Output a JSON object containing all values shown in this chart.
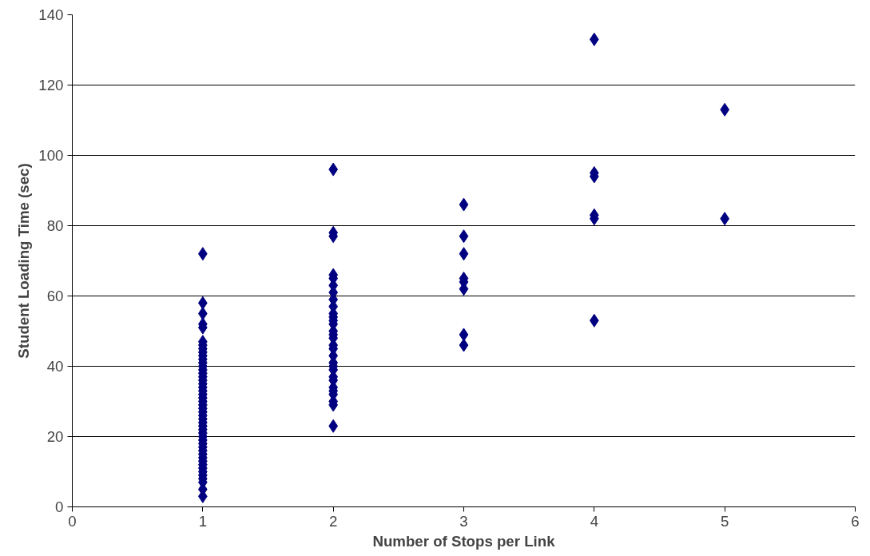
{
  "chart_data": {
    "type": "scatter",
    "xlabel": "Number of Stops per Link",
    "ylabel": "Student Loading Time (sec)",
    "xlim": [
      0,
      6
    ],
    "xticks": [
      0,
      1,
      2,
      3,
      4,
      5,
      6
    ],
    "ylim": [
      0,
      140
    ],
    "yticks": [
      0,
      20,
      40,
      60,
      80,
      100,
      120,
      140
    ],
    "grid": "y",
    "marker": "diamond",
    "series": [
      {
        "color": "#000080",
        "x": [
          1,
          1,
          1,
          1,
          1,
          1,
          1,
          1,
          1,
          1,
          1,
          1,
          1,
          1,
          1,
          1,
          1,
          1,
          1,
          1,
          1,
          1,
          1,
          1,
          1,
          1,
          1,
          1,
          1,
          1,
          1,
          1,
          1,
          1,
          1,
          1,
          1,
          1,
          1,
          1,
          1,
          1,
          1,
          1,
          1,
          1,
          1,
          1,
          2,
          2,
          2,
          2,
          2,
          2,
          2,
          2,
          2,
          2,
          2,
          2,
          2,
          2,
          2,
          2,
          2,
          2,
          2,
          2,
          2,
          2,
          2,
          2,
          2,
          2,
          2,
          2,
          2,
          2,
          3,
          3,
          3,
          3,
          3,
          3,
          3,
          3,
          4,
          4,
          4,
          4,
          4,
          4,
          5,
          5
        ],
        "values": [
          72,
          58,
          55,
          52,
          51,
          47,
          46,
          45,
          44,
          43,
          42,
          41,
          40,
          39,
          38,
          37,
          36,
          35,
          34,
          33,
          32,
          31,
          30,
          29,
          28,
          27,
          26,
          25,
          24,
          23,
          22,
          21,
          20,
          19,
          18,
          17,
          16,
          15,
          14,
          13,
          12,
          11,
          10,
          9,
          8,
          7,
          5,
          3,
          96,
          78,
          77,
          66,
          65,
          63,
          61,
          59,
          57,
          55,
          54,
          53,
          52,
          50,
          49,
          48,
          46,
          45,
          43,
          41,
          40,
          39,
          37,
          36,
          34,
          33,
          32,
          30,
          29,
          23,
          86,
          77,
          72,
          65,
          64,
          62,
          49,
          46,
          133,
          95,
          94,
          83,
          82,
          53,
          113,
          82
        ]
      }
    ]
  }
}
